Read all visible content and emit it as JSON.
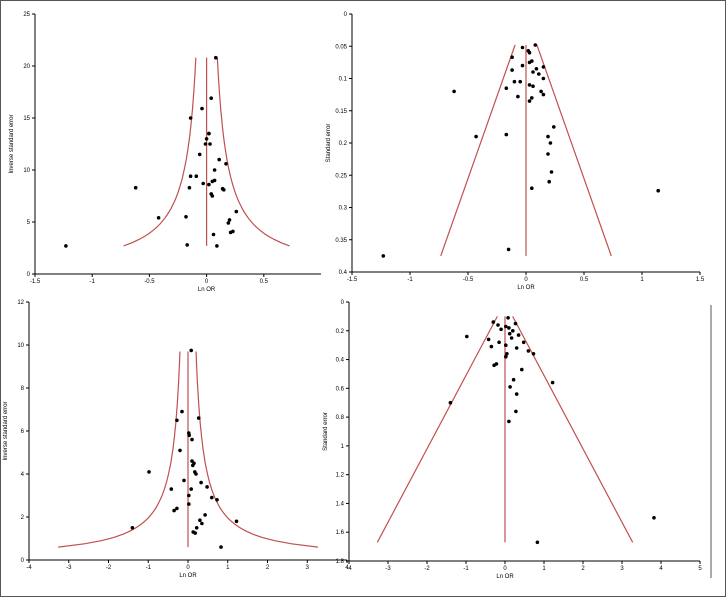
{
  "chart_data": [
    {
      "type": "scatter",
      "panel": "top-left",
      "xlabel": "Ln OR",
      "ylabel": "Inverse standard error",
      "xlim": [
        -1.5,
        1
      ],
      "ylim": [
        0,
        25
      ],
      "xticks": [
        -1.5,
        -1,
        -0.5,
        0,
        0.5
      ],
      "yticks": [
        0,
        5,
        10,
        15,
        20,
        25
      ],
      "y_inverted": false,
      "funnel": {
        "shape": "inverse",
        "center": 0,
        "y_min": 2.7,
        "y_max": 20.8
      },
      "points": [
        [
          -1.23,
          2.7
        ],
        [
          -0.62,
          8.3
        ],
        [
          -0.42,
          5.4
        ],
        [
          -0.17,
          2.8
        ],
        [
          -0.18,
          5.5
        ],
        [
          -0.15,
          8.3
        ],
        [
          -0.14,
          9.4
        ],
        [
          -0.14,
          15.0
        ],
        [
          -0.09,
          9.4
        ],
        [
          -0.06,
          11.5
        ],
        [
          -0.04,
          15.9
        ],
        [
          -0.03,
          8.7
        ],
        [
          -0.01,
          12.5
        ],
        [
          0.0,
          13.0
        ],
        [
          0.02,
          13.5
        ],
        [
          0.02,
          13.5
        ],
        [
          0.03,
          12.5
        ],
        [
          0.02,
          8.6
        ],
        [
          0.04,
          16.9
        ],
        [
          0.04,
          7.7
        ],
        [
          0.05,
          7.5
        ],
        [
          0.05,
          8.9
        ],
        [
          0.07,
          9.0
        ],
        [
          0.06,
          3.8
        ],
        [
          0.07,
          10.0
        ],
        [
          0.08,
          20.8
        ],
        [
          0.11,
          11.0
        ],
        [
          0.14,
          8.2
        ],
        [
          0.15,
          8.1
        ],
        [
          0.17,
          10.6
        ],
        [
          0.19,
          4.9
        ],
        [
          0.2,
          5.2
        ],
        [
          0.21,
          4.0
        ],
        [
          0.23,
          4.1
        ],
        [
          0.26,
          6.0
        ],
        [
          0.09,
          2.7
        ]
      ]
    },
    {
      "type": "scatter",
      "panel": "top-right",
      "xlabel": "Ln OR",
      "ylabel": "Standard error",
      "xlim": [
        -1.5,
        1.5
      ],
      "ylim": [
        0,
        0.4
      ],
      "xticks": [
        -1.5,
        -1,
        -0.5,
        0,
        0.5,
        1,
        1.5
      ],
      "yticks": [
        0,
        0.05,
        0.1,
        0.15,
        0.2,
        0.25,
        0.3,
        0.35,
        0.4
      ],
      "y_inverted": true,
      "funnel": {
        "shape": "linear",
        "center": 0,
        "se_min": 0.048,
        "se_max": 0.375
      },
      "points": [
        [
          0.08,
          0.048
        ],
        [
          -0.03,
          0.052
        ],
        [
          0.02,
          0.057
        ],
        [
          0.03,
          0.06
        ],
        [
          -0.12,
          0.067
        ],
        [
          0.05,
          0.073
        ],
        [
          0.03,
          0.075
        ],
        [
          -0.03,
          0.08
        ],
        [
          0.15,
          0.082
        ],
        [
          0.09,
          0.085
        ],
        [
          -0.12,
          0.087
        ],
        [
          0.06,
          0.09
        ],
        [
          0.11,
          0.093
        ],
        [
          0.15,
          0.1
        ],
        [
          -0.1,
          0.105
        ],
        [
          -0.05,
          0.105
        ],
        [
          0.03,
          0.11
        ],
        [
          0.06,
          0.112
        ],
        [
          -0.17,
          0.115
        ],
        [
          -0.62,
          0.12
        ],
        [
          0.13,
          0.12
        ],
        [
          0.15,
          0.125
        ],
        [
          -0.07,
          0.128
        ],
        [
          0.05,
          0.13
        ],
        [
          0.03,
          0.135
        ],
        [
          0.24,
          0.175
        ],
        [
          -0.17,
          0.187
        ],
        [
          -0.43,
          0.19
        ],
        [
          0.19,
          0.19
        ],
        [
          0.21,
          0.2
        ],
        [
          0.19,
          0.217
        ],
        [
          0.22,
          0.245
        ],
        [
          0.2,
          0.26
        ],
        [
          0.05,
          0.27
        ],
        [
          1.14,
          0.274
        ],
        [
          -0.15,
          0.365
        ],
        [
          -1.23,
          0.375
        ]
      ]
    },
    {
      "type": "scatter",
      "panel": "bottom-left",
      "xlabel": "Ln OR",
      "ylabel": "Inverse standard error",
      "xlim": [
        -4,
        4
      ],
      "ylim": [
        0,
        12
      ],
      "xticks": [
        -4,
        -3,
        -2,
        -1,
        0,
        1,
        2,
        3,
        4
      ],
      "yticks": [
        0,
        2,
        4,
        6,
        8,
        10,
        12
      ],
      "y_inverted": false,
      "funnel": {
        "shape": "inverse",
        "center": 0,
        "y_min": 0.6,
        "y_max": 9.7
      },
      "points": [
        [
          0.08,
          9.75
        ],
        [
          -0.15,
          6.9
        ],
        [
          0.27,
          6.6
        ],
        [
          -0.28,
          6.5
        ],
        [
          0.02,
          5.9
        ],
        [
          0.03,
          5.8
        ],
        [
          0.1,
          5.6
        ],
        [
          -0.2,
          5.1
        ],
        [
          0.1,
          4.6
        ],
        [
          0.15,
          4.5
        ],
        [
          0.12,
          4.4
        ],
        [
          -0.98,
          4.1
        ],
        [
          0.17,
          4.1
        ],
        [
          0.2,
          4.0
        ],
        [
          -0.1,
          3.7
        ],
        [
          0.33,
          3.6
        ],
        [
          0.48,
          3.4
        ],
        [
          -0.42,
          3.3
        ],
        [
          0.08,
          3.3
        ],
        [
          0.02,
          3.0
        ],
        [
          0.6,
          2.9
        ],
        [
          0.73,
          2.8
        ],
        [
          0.02,
          2.6
        ],
        [
          -0.28,
          2.4
        ],
        [
          -0.35,
          2.3
        ],
        [
          0.43,
          2.1
        ],
        [
          0.3,
          1.85
        ],
        [
          0.35,
          1.7
        ],
        [
          0.22,
          1.5
        ],
        [
          0.13,
          1.3
        ],
        [
          0.18,
          1.25
        ],
        [
          1.22,
          1.8
        ],
        [
          -1.4,
          1.5
        ],
        [
          0.83,
          0.6
        ]
      ]
    },
    {
      "type": "scatter",
      "panel": "bottom-right",
      "xlabel": "Ln OR",
      "ylabel": "Standard error",
      "xlim": [
        -4,
        5
      ],
      "ylim": [
        0,
        1.8
      ],
      "xticks": [
        -4,
        -3,
        -2,
        -1,
        0,
        1,
        2,
        3,
        4,
        5
      ],
      "yticks": [
        0,
        0.2,
        0.4,
        0.6,
        0.8,
        1,
        1.2,
        1.4,
        1.6,
        1.8
      ],
      "y_inverted": true,
      "funnel": {
        "shape": "linear",
        "center": 0,
        "se_min": 0.1,
        "se_max": 1.67
      },
      "points": [
        [
          0.08,
          0.11
        ],
        [
          -0.3,
          0.14
        ],
        [
          0.27,
          0.15
        ],
        [
          -0.18,
          0.16
        ],
        [
          0.02,
          0.17
        ],
        [
          0.1,
          0.18
        ],
        [
          -0.1,
          0.19
        ],
        [
          0.2,
          0.2
        ],
        [
          0.12,
          0.22
        ],
        [
          -0.98,
          0.24
        ],
        [
          0.35,
          0.23
        ],
        [
          0.17,
          0.25
        ],
        [
          -0.42,
          0.26
        ],
        [
          0.48,
          0.28
        ],
        [
          -0.15,
          0.28
        ],
        [
          0.02,
          0.3
        ],
        [
          -0.35,
          0.31
        ],
        [
          0.3,
          0.32
        ],
        [
          0.6,
          0.34
        ],
        [
          0.73,
          0.36
        ],
        [
          0.05,
          0.36
        ],
        [
          0.02,
          0.38
        ],
        [
          -0.28,
          0.44
        ],
        [
          -0.22,
          0.43
        ],
        [
          0.43,
          0.47
        ],
        [
          1.22,
          0.56
        ],
        [
          0.22,
          0.54
        ],
        [
          0.13,
          0.59
        ],
        [
          0.3,
          0.64
        ],
        [
          -1.4,
          0.7
        ],
        [
          0.28,
          0.76
        ],
        [
          0.1,
          0.83
        ],
        [
          3.82,
          1.5
        ],
        [
          0.83,
          1.67
        ]
      ]
    }
  ]
}
